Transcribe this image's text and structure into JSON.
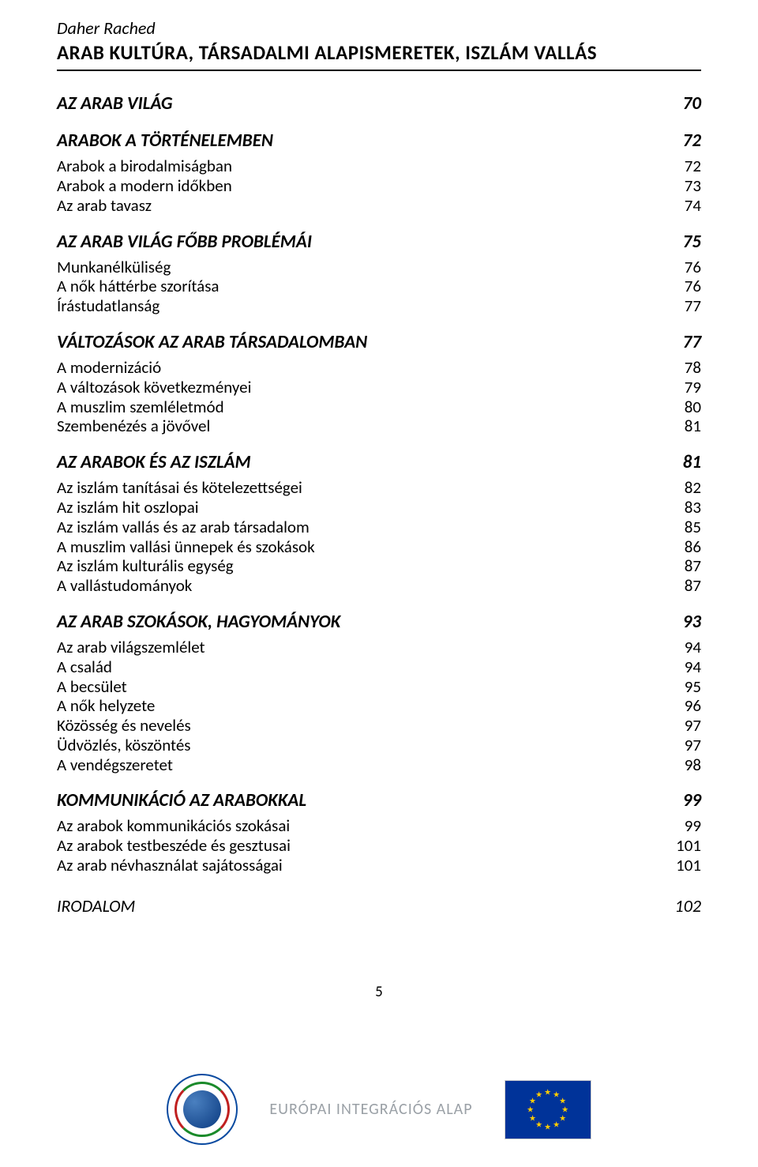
{
  "author": "Daher Rached",
  "title": "ARAB KULTÚRA, TÁRSADALMI ALAPISMERETEK, ISZLÁM VALLÁS",
  "toc": [
    {
      "type": "head",
      "label": "AZ ARAB VILÁG",
      "page": "70",
      "first": true
    },
    {
      "type": "head",
      "label": "ARABOK A TÖRTÉNELEMBEN",
      "page": "72"
    },
    {
      "type": "entry",
      "label": "Arabok a birodalmiságban",
      "page": "72"
    },
    {
      "type": "entry",
      "label": "Arabok a modern időkben",
      "page": "73"
    },
    {
      "type": "entry",
      "label": "Az arab tavasz",
      "page": "74"
    },
    {
      "type": "head",
      "label": "AZ ARAB VILÁG FŐBB PROBLÉMÁI",
      "page": "75"
    },
    {
      "type": "entry",
      "label": "Munkanélküliség",
      "page": "76"
    },
    {
      "type": "entry",
      "label": "A nők háttérbe szorítása",
      "page": "76"
    },
    {
      "type": "entry",
      "label": "Írástudatlanság",
      "page": "77"
    },
    {
      "type": "head",
      "label": "VÁLTOZÁSOK AZ ARAB TÁRSADALOMBAN",
      "page": "77"
    },
    {
      "type": "entry",
      "label": "A modernizáció",
      "page": "78"
    },
    {
      "type": "entry",
      "label": "A változások következményei",
      "page": "79"
    },
    {
      "type": "entry",
      "label": "A muszlim szemléletmód",
      "page": "80"
    },
    {
      "type": "entry",
      "label": "Szembenézés a jövővel",
      "page": "81"
    },
    {
      "type": "head",
      "label": "AZ ARABOK ÉS AZ ISZLÁM",
      "page": "81"
    },
    {
      "type": "entry",
      "label": "Az iszlám tanításai és kötelezettségei",
      "page": "82"
    },
    {
      "type": "entry",
      "label": "Az iszlám hit oszlopai",
      "page": "83"
    },
    {
      "type": "entry",
      "label": "Az iszlám vallás és az arab társadalom",
      "page": "85"
    },
    {
      "type": "entry",
      "label": "A muszlim vallási ünnepek és szokások",
      "page": "86"
    },
    {
      "type": "entry",
      "label": "Az iszlám kulturális egység",
      "page": "87"
    },
    {
      "type": "entry",
      "label": "A vallástudományok",
      "page": "87"
    },
    {
      "type": "head",
      "label": "AZ ARAB SZOKÁSOK, HAGYOMÁNYOK",
      "page": "93"
    },
    {
      "type": "entry",
      "label": "Az arab világszemlélet",
      "page": "94"
    },
    {
      "type": "entry",
      "label": "A család",
      "page": "94"
    },
    {
      "type": "entry",
      "label": "A becsület",
      "page": "95"
    },
    {
      "type": "entry",
      "label": "A nők helyzete",
      "page": "96"
    },
    {
      "type": "entry",
      "label": "Közösség és nevelés",
      "page": "97"
    },
    {
      "type": "entry",
      "label": "Üdvözlés, köszöntés",
      "page": "97"
    },
    {
      "type": "entry",
      "label": "A vendégszeretet",
      "page": "98"
    },
    {
      "type": "head",
      "label": "KOMMUNIKÁCIÓ AZ ARABOKKAL",
      "page": "99"
    },
    {
      "type": "entry",
      "label": "Az arabok kommunikációs szokásai",
      "page": "99"
    },
    {
      "type": "entry",
      "label": "Az arabok testbeszéde és gesztusai",
      "page": "101"
    },
    {
      "type": "entry",
      "label": "Az arab névhasználat sajátosságai",
      "page": "101"
    },
    {
      "type": "irodalom",
      "label": "IRODALOM",
      "page": "102"
    }
  ],
  "footer": {
    "eu_text": "EURÓPAI INTEGRÁCIÓS ALAP",
    "page_number": "5"
  },
  "colors": {
    "text": "#000000",
    "eu_text": "#9aa0a6",
    "eu_flag_bg": "#003399",
    "eu_star": "#ffcc00",
    "bm_ring": "#0a4aa0"
  }
}
